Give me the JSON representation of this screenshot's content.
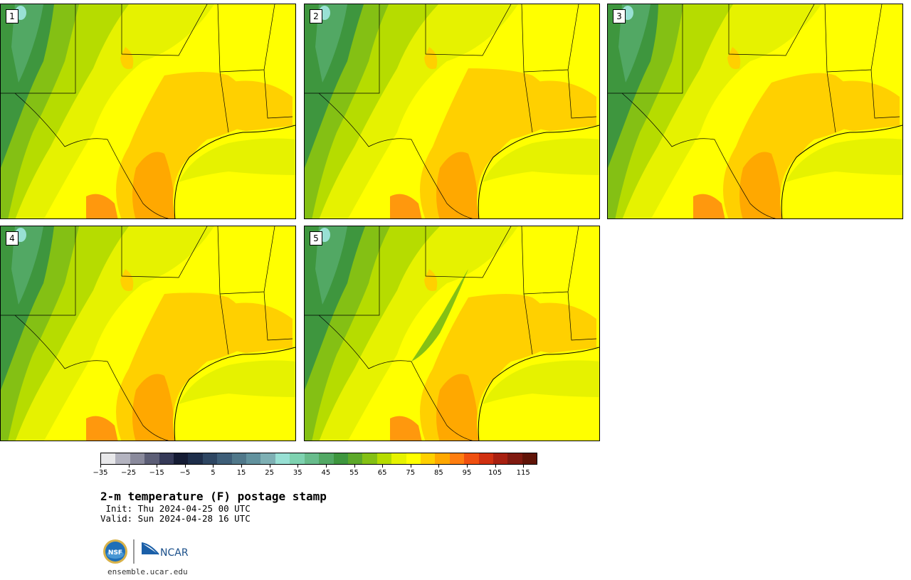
{
  "panels": [
    {
      "label": "1"
    },
    {
      "label": "2"
    },
    {
      "label": "3"
    },
    {
      "label": "4"
    },
    {
      "label": "5"
    }
  ],
  "colorbar": {
    "colors": [
      "#e8e8ea",
      "#b4b4c0",
      "#8a8a9c",
      "#5c5e76",
      "#363a58",
      "#151c34",
      "#1e2e4a",
      "#2e4662",
      "#3e5e78",
      "#50788a",
      "#62929e",
      "#7eb0b4",
      "#98e0d4",
      "#7ed2b0",
      "#68bc8c",
      "#52a864",
      "#3e963e",
      "#5ca82a",
      "#84c014",
      "#b6dc00",
      "#e6f200",
      "#ffff00",
      "#ffd000",
      "#ffa800",
      "#ff7e10",
      "#f05010",
      "#d03010",
      "#a82010",
      "#801a10",
      "#601408"
    ],
    "tick_labels": [
      "−35",
      "−25",
      "−15",
      "−5",
      "5",
      "15",
      "25",
      "35",
      "45",
      "55",
      "65",
      "75",
      "85",
      "95",
      "105",
      "115"
    ],
    "min": -35,
    "max": 120,
    "step": 5
  },
  "title": "2-m temperature (F) postage stamp",
  "init_text": " Init: Thu 2024-04-25 00 UTC",
  "valid_text": "Valid: Sun 2024-04-28 16 UTC",
  "logos": {
    "nsf": "NSF",
    "ncar": "NCAR"
  },
  "site": "ensemble.ucar.edu"
}
